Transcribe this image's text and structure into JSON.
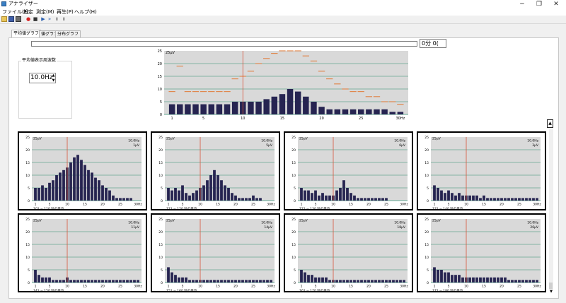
{
  "app": {
    "title": "アナライザー"
  },
  "window_controls": {
    "minimize": "─",
    "maximize": "❐",
    "close": "✕"
  },
  "menu": [
    "ファイル(F)",
    "設定",
    "測定(M)",
    "再生(P)",
    "ヘルプ(H)"
  ],
  "toolbar_icons": [
    "folder-open-icon",
    "save-icon",
    "print-icon",
    "record-icon",
    "stop-icon",
    "play-icon",
    "fast-forward-icon",
    "pause-icon",
    "step-icon"
  ],
  "tabs": [
    "平均値グラフ",
    "値グラフ",
    "分布グラフ"
  ],
  "time_display": "0分 0(",
  "frequency_setting": {
    "label": "平均値表示周波数",
    "value": "10.0Hz"
  },
  "scroll": {
    "up": "▲",
    "down": "▼"
  },
  "colors": {
    "bar": "#262451",
    "marker_line": "#d7563c",
    "plot_bg": "#d9d9d9",
    "grid": "#2e8b6e",
    "peak_dash": "#e0884e"
  },
  "chart_data": [
    {
      "type": "bar",
      "name": "main",
      "ylabel": "25μV",
      "ylim": [
        0,
        25
      ],
      "x": [
        1,
        2,
        3,
        4,
        5,
        6,
        7,
        8,
        9,
        10,
        11,
        12,
        13,
        14,
        15,
        16,
        17,
        18,
        19,
        20,
        21,
        22,
        23,
        24,
        25,
        26,
        27,
        28,
        29,
        30
      ],
      "values": [
        4,
        4,
        4,
        4,
        4,
        4,
        4,
        4,
        5,
        5,
        5,
        5,
        6,
        7,
        8,
        10,
        9,
        7,
        5,
        3,
        2,
        2,
        2,
        2,
        2,
        2,
        2,
        2,
        1,
        1
      ],
      "peak_values": [
        9,
        19,
        9,
        9,
        9,
        9,
        9,
        9,
        14,
        15,
        17,
        20,
        22,
        24,
        25,
        25,
        25,
        23,
        21,
        17,
        14,
        12,
        10,
        9,
        9,
        7,
        7,
        5,
        5,
        4
      ],
      "marker_x": 10,
      "xticks": [
        "1",
        "5",
        "10",
        "15",
        "20",
        "25",
        "30Hz"
      ],
      "yticks": [
        "25",
        "20",
        "15",
        "10",
        "5",
        "0"
      ]
    },
    {
      "type": "bar",
      "ylabel": "25μV",
      "ylim": [
        0,
        25
      ],
      "values": [
        5,
        5,
        6,
        5,
        7,
        8,
        10,
        11,
        12,
        13,
        15,
        17,
        18,
        16,
        14,
        12,
        11,
        9,
        8,
        6,
        5,
        4,
        2,
        1,
        1,
        1,
        1,
        1,
        0,
        0
      ],
      "marker_x": 10,
      "info": [
        "10.0Hz",
        "1μV"
      ],
      "caption": "101 ~ 110 秒の平均",
      "xticks": [
        "1",
        "5",
        "10",
        "15",
        "20",
        "25",
        "30Hz"
      ],
      "yticks": [
        "25",
        "20",
        "15",
        "10",
        "5",
        "0"
      ]
    },
    {
      "type": "bar",
      "ylabel": "25μV",
      "ylim": [
        0,
        25
      ],
      "values": [
        5,
        4,
        5,
        4,
        6,
        3,
        2,
        3,
        4,
        5,
        6,
        8,
        10,
        12,
        10,
        8,
        6,
        5,
        3,
        2,
        1,
        1,
        1,
        1,
        2,
        1,
        1,
        0,
        0,
        0
      ],
      "marker_x": 10,
      "info": [
        "10.0Hz",
        "5μV"
      ],
      "caption": "111 ~ 120 秒の平均",
      "xticks": [
        "1",
        "5",
        "10",
        "15",
        "20",
        "25",
        "30Hz"
      ],
      "yticks": [
        "25",
        "20",
        "15",
        "10",
        "5",
        "0"
      ]
    },
    {
      "type": "bar",
      "ylabel": "25μV",
      "ylim": [
        0,
        25
      ],
      "values": [
        5,
        4,
        4,
        3,
        4,
        2,
        3,
        2,
        2,
        2,
        4,
        5,
        8,
        5,
        3,
        2,
        1,
        1,
        1,
        1,
        1,
        1,
        1,
        1,
        1,
        0,
        0,
        0,
        0,
        0
      ],
      "marker_x": 10,
      "info": [
        "10.0Hz",
        "6μV"
      ],
      "caption": "121 ~ 130 秒の平均",
      "xticks": [
        "1",
        "5",
        "10",
        "15",
        "20",
        "25",
        "30Hz"
      ],
      "yticks": [
        "25",
        "20",
        "15",
        "10",
        "5",
        "0"
      ]
    },
    {
      "type": "bar",
      "ylabel": "25μV",
      "ylim": [
        0,
        25
      ],
      "values": [
        6,
        5,
        4,
        3,
        4,
        3,
        2,
        3,
        2,
        2,
        2,
        2,
        2,
        1,
        2,
        1,
        1,
        1,
        1,
        1,
        1,
        1,
        1,
        1,
        1,
        1,
        1,
        1,
        1,
        1
      ],
      "marker_x": 10,
      "info": [
        "10.0Hz",
        "3μV"
      ],
      "caption": "131 ~ 140 秒の平均",
      "xticks": [
        "1",
        "5",
        "10",
        "15",
        "20",
        "25",
        "30Hz"
      ],
      "yticks": [
        "25",
        "20",
        "15",
        "10",
        "5",
        "0"
      ]
    },
    {
      "type": "bar",
      "ylabel": "25μV",
      "ylim": [
        0,
        25
      ],
      "values": [
        5,
        3,
        2,
        2,
        2,
        1,
        1,
        1,
        1,
        2,
        1,
        1,
        1,
        1,
        1,
        1,
        1,
        1,
        1,
        1,
        1,
        1,
        1,
        1,
        1,
        1,
        1,
        1,
        1,
        1
      ],
      "marker_x": 10,
      "info": [
        "10.0Hz",
        "11μV"
      ],
      "caption": "141 ~ 150 秒の平均",
      "xticks": [
        "1",
        "5",
        "10",
        "15",
        "20",
        "25",
        "30Hz"
      ],
      "yticks": [
        "25",
        "20",
        "15",
        "10",
        "5",
        "0"
      ]
    },
    {
      "type": "bar",
      "ylabel": "25μV",
      "ylim": [
        0,
        25
      ],
      "values": [
        6,
        4,
        3,
        2,
        2,
        2,
        1,
        1,
        1,
        1,
        1,
        1,
        1,
        1,
        1,
        1,
        1,
        1,
        1,
        1,
        1,
        1,
        1,
        1,
        1,
        1,
        1,
        1,
        1,
        1
      ],
      "marker_x": 10,
      "info": [
        "10.0Hz",
        "14μV"
      ],
      "caption": "151 ~ 160 秒の平均",
      "xticks": [
        "1",
        "5",
        "10",
        "15",
        "20",
        "25",
        "30Hz"
      ],
      "yticks": [
        "25",
        "20",
        "15",
        "10",
        "5",
        "0"
      ]
    },
    {
      "type": "bar",
      "ylabel": "25μV",
      "ylim": [
        0,
        25
      ],
      "values": [
        5,
        4,
        3,
        3,
        2,
        2,
        2,
        2,
        1,
        1,
        1,
        1,
        1,
        1,
        1,
        1,
        1,
        1,
        1,
        1,
        1,
        1,
        1,
        1,
        1,
        1,
        1,
        1,
        1,
        1
      ],
      "marker_x": 10,
      "info": [
        "10.0Hz",
        "18μV"
      ],
      "caption": "161 ~ 170 秒の平均",
      "xticks": [
        "1",
        "5",
        "10",
        "15",
        "20",
        "25",
        "30Hz"
      ],
      "yticks": [
        "25",
        "20",
        "15",
        "10",
        "5",
        "0"
      ]
    },
    {
      "type": "bar",
      "ylabel": "25μV",
      "ylim": [
        0,
        25
      ],
      "values": [
        6,
        5,
        5,
        4,
        4,
        3,
        3,
        3,
        2,
        2,
        2,
        2,
        2,
        2,
        2,
        2,
        2,
        2,
        2,
        2,
        2,
        1,
        1,
        1,
        1,
        1,
        1,
        1,
        1,
        1
      ],
      "marker_x": 10,
      "info": [
        "10.0Hz",
        "26μV"
      ],
      "caption": "171 ~ 180 秒の平均",
      "xticks": [
        "1",
        "5",
        "10",
        "15",
        "20",
        "25",
        "30Hz"
      ],
      "yticks": [
        "25",
        "20",
        "15",
        "10",
        "5",
        "0"
      ]
    }
  ]
}
